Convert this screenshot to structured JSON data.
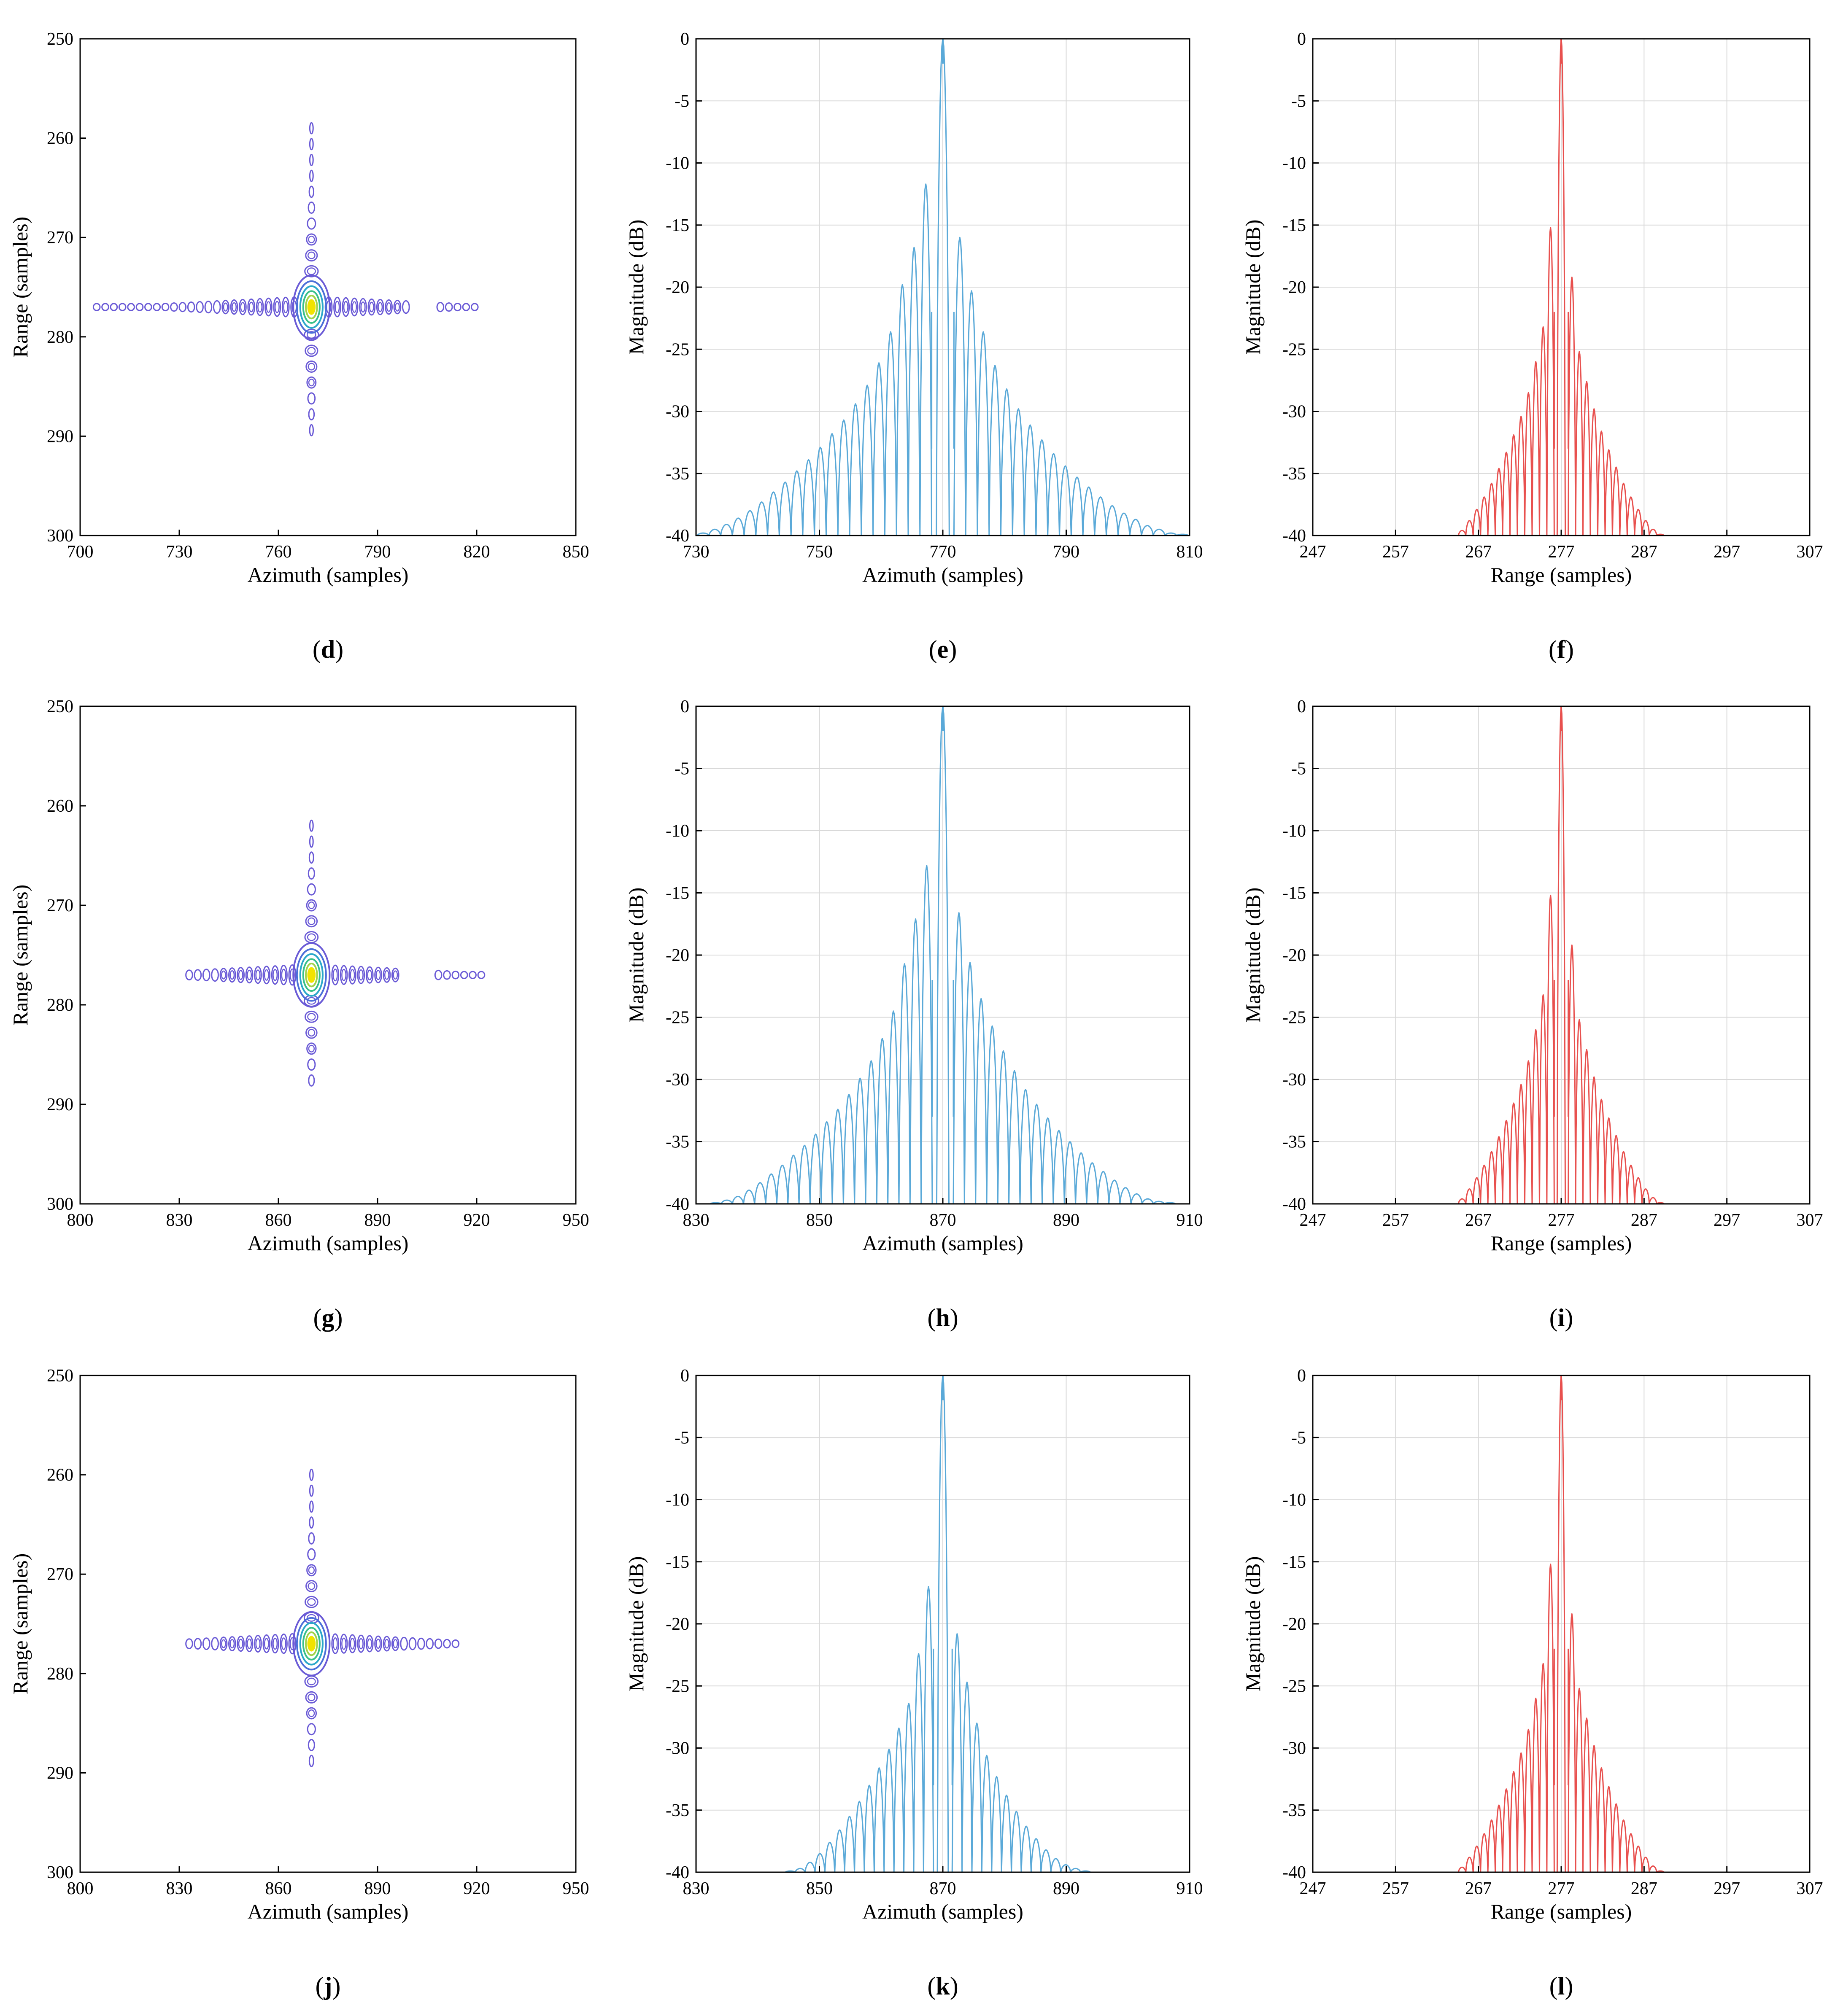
{
  "figure": {
    "panels": [
      "d",
      "e",
      "f",
      "g",
      "h",
      "i",
      "j",
      "k",
      "l"
    ]
  },
  "colors": {
    "azimuth_line": "#5aa9d8",
    "range_line": "#e8504e",
    "contour_outer": "#6a5ad6",
    "contour_mid": "#2aa7c9",
    "contour_core": "#f2e300",
    "grid": "#d9d9d9"
  },
  "chart_data": [
    {
      "panel": "d",
      "type": "contour",
      "caption": "d",
      "xlabel": "Azimuth (samples)",
      "ylabel": "Range (samples)",
      "xlim": [
        700,
        850
      ],
      "ylim": [
        250,
        300
      ],
      "y_reversed": true,
      "xticks": [
        "700",
        "730",
        "760",
        "790",
        "820",
        "850"
      ],
      "yticks": [
        "250",
        "260",
        "270",
        "280",
        "290",
        "300"
      ],
      "peak": {
        "azimuth": 770,
        "range": 277
      },
      "az_extent": [
        705,
        822
      ],
      "rg_extent": [
        259,
        290
      ],
      "az_gap": [
        800,
        808
      ]
    },
    {
      "panel": "e",
      "type": "line",
      "caption": "e",
      "xlabel": "Azimuth (samples)",
      "ylabel": "Magnitude (dB)",
      "xlim": [
        730,
        810
      ],
      "ylim": [
        -40,
        0
      ],
      "grid": true,
      "xticks": [
        "730",
        "750",
        "770",
        "790",
        "810"
      ],
      "yticks": [
        "0",
        "-5",
        "-10",
        "-15",
        "-20",
        "-25",
        "-30",
        "-35",
        "-40"
      ],
      "center": 770,
      "spacing": 1.9,
      "sidelobes": 20,
      "left_peaks": [
        -11.7,
        -16.8,
        -19.8,
        -23.6,
        -26.1,
        -27.9,
        -29.4,
        -30.7,
        -31.8,
        -32.9,
        -33.9,
        -34.8,
        -35.7,
        -36.5,
        -37.3,
        -38.0,
        -38.6,
        -39.1,
        -39.5,
        -39.8
      ],
      "right_peaks": [
        -16.0,
        -20.3,
        -23.6,
        -26.3,
        -28.2,
        -29.8,
        -31.1,
        -32.3,
        -33.4,
        -34.4,
        -35.3,
        -36.1,
        -36.9,
        -37.6,
        -38.2,
        -38.7,
        -39.2,
        -39.5,
        -39.8,
        -39.9
      ]
    },
    {
      "panel": "f",
      "type": "line",
      "caption": "f",
      "xlabel": "Range (samples)",
      "ylabel": "Magnitude (dB)",
      "xlim": [
        247,
        307
      ],
      "ylim": [
        -40,
        0
      ],
      "grid": true,
      "xticks": [
        "247",
        "257",
        "267",
        "277",
        "287",
        "297",
        "307"
      ],
      "yticks": [
        "0",
        "-5",
        "-10",
        "-15",
        "-20",
        "-25",
        "-30",
        "-35",
        "-40"
      ],
      "center": 277,
      "spacing": 0.89,
      "sidelobes": 13,
      "left_peaks": [
        -15.2,
        -23.2,
        -26.0,
        -28.5,
        -30.4,
        -31.9,
        -33.3,
        -34.6,
        -35.8,
        -36.9,
        -37.9,
        -38.8,
        -39.6
      ],
      "right_peaks": [
        -19.2,
        -25.2,
        -27.6,
        -29.8,
        -31.6,
        -33.1,
        -34.5,
        -35.8,
        -36.9,
        -37.9,
        -38.8,
        -39.5,
        -39.9
      ]
    },
    {
      "panel": "g",
      "type": "contour",
      "caption": "g",
      "xlabel": "Azimuth (samples)",
      "ylabel": "Range (samples)",
      "xlim": [
        800,
        950
      ],
      "ylim": [
        250,
        300
      ],
      "y_reversed": true,
      "xticks": [
        "800",
        "830",
        "860",
        "890",
        "920",
        "950"
      ],
      "yticks": [
        "250",
        "260",
        "270",
        "280",
        "290",
        "300"
      ],
      "peak": {
        "azimuth": 870,
        "range": 277
      },
      "az_extent": [
        833,
        922
      ],
      "rg_extent": [
        262,
        289
      ],
      "az_gap": [
        897,
        908
      ]
    },
    {
      "panel": "h",
      "type": "line",
      "caption": "h",
      "xlabel": "Azimuth (samples)",
      "ylabel": "Magnitude (dB)",
      "xlim": [
        830,
        910
      ],
      "ylim": [
        -40,
        0
      ],
      "grid": true,
      "xticks": [
        "830",
        "850",
        "870",
        "890",
        "910"
      ],
      "yticks": [
        "0",
        "-5",
        "-10",
        "-15",
        "-20",
        "-25",
        "-30",
        "-35",
        "-40"
      ],
      "center": 870,
      "spacing": 1.8,
      "sidelobes": 20,
      "left_peaks": [
        -12.8,
        -17.1,
        -20.7,
        -24.5,
        -26.7,
        -28.5,
        -29.9,
        -31.2,
        -32.4,
        -33.4,
        -34.4,
        -35.3,
        -36.1,
        -36.9,
        -37.6,
        -38.3,
        -38.9,
        -39.4,
        -39.7,
        -39.9
      ],
      "right_peaks": [
        -16.6,
        -20.6,
        -23.5,
        -25.7,
        -27.7,
        -29.3,
        -30.8,
        -32.0,
        -33.1,
        -34.1,
        -35.0,
        -35.9,
        -36.7,
        -37.4,
        -38.1,
        -38.7,
        -39.2,
        -39.6,
        -39.8,
        -39.9
      ]
    },
    {
      "panel": "i",
      "type": "line",
      "caption": "i",
      "xlabel": "Range (samples)",
      "ylabel": "Magnitude (dB)",
      "xlim": [
        247,
        307
      ],
      "ylim": [
        -40,
        0
      ],
      "grid": true,
      "xticks": [
        "247",
        "257",
        "267",
        "277",
        "287",
        "297",
        "307"
      ],
      "yticks": [
        "0",
        "-5",
        "-10",
        "-15",
        "-20",
        "-25",
        "-30",
        "-35",
        "-40"
      ],
      "center": 277,
      "spacing": 0.89,
      "sidelobes": 13,
      "left_peaks": [
        -15.2,
        -23.2,
        -26.0,
        -28.5,
        -30.4,
        -31.9,
        -33.3,
        -34.6,
        -35.8,
        -36.9,
        -37.9,
        -38.8,
        -39.6
      ],
      "right_peaks": [
        -19.2,
        -25.2,
        -27.6,
        -29.8,
        -31.6,
        -33.1,
        -34.5,
        -35.8,
        -36.9,
        -37.9,
        -38.8,
        -39.5,
        -39.9
      ]
    },
    {
      "panel": "j",
      "type": "contour",
      "caption": "j",
      "xlabel": "Azimuth (samples)",
      "ylabel": "Range (samples)",
      "xlim": [
        800,
        950
      ],
      "ylim": [
        250,
        300
      ],
      "y_reversed": true,
      "xticks": [
        "800",
        "830",
        "860",
        "890",
        "920",
        "950"
      ],
      "yticks": [
        "250",
        "260",
        "270",
        "280",
        "290",
        "300"
      ],
      "peak": {
        "azimuth": 870,
        "range": 277
      },
      "az_extent": [
        833,
        915
      ],
      "rg_extent": [
        260,
        290
      ],
      "az_gap": [
        0,
        0
      ]
    },
    {
      "panel": "k",
      "type": "line",
      "caption": "k",
      "xlabel": "Azimuth (samples)",
      "ylabel": "Magnitude (dB)",
      "xlim": [
        830,
        910
      ],
      "ylim": [
        -40,
        0
      ],
      "grid": true,
      "xticks": [
        "830",
        "850",
        "870",
        "890",
        "910"
      ],
      "yticks": [
        "0",
        "-5",
        "-10",
        "-15",
        "-20",
        "-25",
        "-30",
        "-35",
        "-40"
      ],
      "center": 870,
      "spacing": 1.6,
      "sidelobes": 15,
      "left_peaks": [
        -17.0,
        -22.4,
        -26.4,
        -28.4,
        -30.1,
        -31.6,
        -33.0,
        -34.3,
        -35.5,
        -36.6,
        -37.6,
        -38.5,
        -39.2,
        -39.7,
        -39.9
      ],
      "right_peaks": [
        -20.8,
        -24.7,
        -28.0,
        -30.6,
        -32.3,
        -33.8,
        -35.1,
        -36.3,
        -37.3,
        -38.2,
        -38.9,
        -39.4,
        -39.7,
        -39.9,
        -40.0
      ]
    },
    {
      "panel": "l",
      "type": "line",
      "caption": "l",
      "xlabel": "Range (samples)",
      "ylabel": "Magnitude (dB)",
      "xlim": [
        247,
        307
      ],
      "ylim": [
        -40,
        0
      ],
      "grid": true,
      "xticks": [
        "247",
        "257",
        "267",
        "277",
        "287",
        "297",
        "307"
      ],
      "yticks": [
        "0",
        "-5",
        "-10",
        "-15",
        "-20",
        "-25",
        "-30",
        "-35",
        "-40"
      ],
      "center": 277,
      "spacing": 0.89,
      "sidelobes": 13,
      "left_peaks": [
        -15.2,
        -23.2,
        -26.0,
        -28.5,
        -30.4,
        -31.9,
        -33.3,
        -34.6,
        -35.8,
        -36.9,
        -37.9,
        -38.8,
        -39.6
      ],
      "right_peaks": [
        -19.2,
        -25.2,
        -27.6,
        -29.8,
        -31.6,
        -33.1,
        -34.5,
        -35.8,
        -36.9,
        -37.9,
        -38.8,
        -39.5,
        -39.9
      ]
    }
  ]
}
